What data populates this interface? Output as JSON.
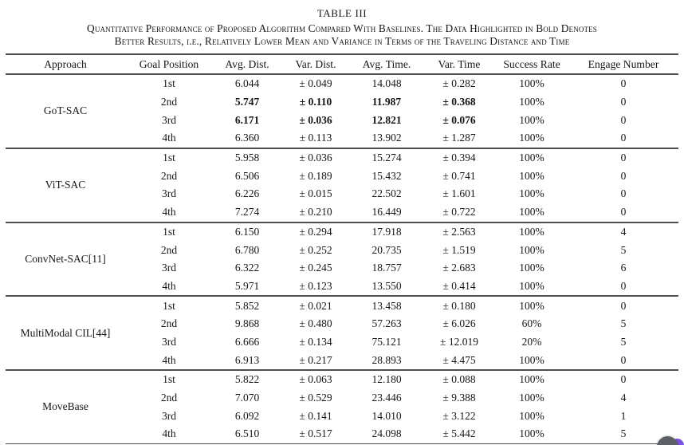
{
  "header": {
    "table_label": "TABLE III",
    "caption_line1": "Quantitative Performance of Proposed Algorithm Compared With Baselines. The Data Highlighted in Bold Denotes",
    "caption_line2": "Better Results, i.e., Relatively Lower Mean and Variance in Terms of the Traveling Distance and Time"
  },
  "table": {
    "columns": [
      "Approach",
      "Goal Position",
      "Avg. Dist.",
      "Var. Dist.",
      "Avg. Time.",
      "Var. Time",
      "Success Rate",
      "Engage Number"
    ],
    "groups": [
      {
        "approach": "GoT-SAC",
        "rows": [
          {
            "goal": "1st",
            "avg_dist": "6.044",
            "var_dist": "± 0.049",
            "avg_time": "14.048",
            "var_time": "± 0.282",
            "success": "100%",
            "engage": "0",
            "bold": false
          },
          {
            "goal": "2nd",
            "avg_dist": "5.747",
            "var_dist": "± 0.110",
            "avg_time": "11.987",
            "var_time": "± 0.368",
            "success": "100%",
            "engage": "0",
            "bold": true
          },
          {
            "goal": "3rd",
            "avg_dist": "6.171",
            "var_dist": "± 0.036",
            "avg_time": "12.821",
            "var_time": "± 0.076",
            "success": "100%",
            "engage": "0",
            "bold": true
          },
          {
            "goal": "4th",
            "avg_dist": "6.360",
            "var_dist": "± 0.113",
            "avg_time": "13.902",
            "var_time": "± 1.287",
            "success": "100%",
            "engage": "0",
            "bold": false
          }
        ]
      },
      {
        "approach": "ViT-SAC",
        "rows": [
          {
            "goal": "1st",
            "avg_dist": "5.958",
            "var_dist": "± 0.036",
            "avg_time": "15.274",
            "var_time": "± 0.394",
            "success": "100%",
            "engage": "0",
            "bold": false
          },
          {
            "goal": "2nd",
            "avg_dist": "6.506",
            "var_dist": "± 0.189",
            "avg_time": "15.432",
            "var_time": "± 0.741",
            "success": "100%",
            "engage": "0",
            "bold": false
          },
          {
            "goal": "3rd",
            "avg_dist": "6.226",
            "var_dist": "± 0.015",
            "avg_time": "22.502",
            "var_time": "± 1.601",
            "success": "100%",
            "engage": "0",
            "bold": false
          },
          {
            "goal": "4th",
            "avg_dist": "7.274",
            "var_dist": "± 0.210",
            "avg_time": "16.449",
            "var_time": "± 0.722",
            "success": "100%",
            "engage": "0",
            "bold": false
          }
        ]
      },
      {
        "approach": "ConvNet-SAC[11]",
        "rows": [
          {
            "goal": "1st",
            "avg_dist": "6.150",
            "var_dist": "± 0.294",
            "avg_time": "17.918",
            "var_time": "± 2.563",
            "success": "100%",
            "engage": "4",
            "bold": false
          },
          {
            "goal": "2nd",
            "avg_dist": "6.780",
            "var_dist": "± 0.252",
            "avg_time": "20.735",
            "var_time": "± 1.519",
            "success": "100%",
            "engage": "5",
            "bold": false
          },
          {
            "goal": "3rd",
            "avg_dist": "6.322",
            "var_dist": "± 0.245",
            "avg_time": "18.757",
            "var_time": "± 2.683",
            "success": "100%",
            "engage": "6",
            "bold": false
          },
          {
            "goal": "4th",
            "avg_dist": "5.971",
            "var_dist": "± 0.123",
            "avg_time": "13.550",
            "var_time": "± 0.414",
            "success": "100%",
            "engage": "0",
            "bold": false
          }
        ]
      },
      {
        "approach": "MultiModal CIL[44]",
        "rows": [
          {
            "goal": "1st",
            "avg_dist": "5.852",
            "var_dist": "± 0.021",
            "avg_time": "13.458",
            "var_time": "± 0.180",
            "success": "100%",
            "engage": "0",
            "bold": false
          },
          {
            "goal": "2nd",
            "avg_dist": "9.868",
            "var_dist": "± 0.480",
            "avg_time": "57.263",
            "var_time": "± 6.026",
            "success": "60%",
            "engage": "5",
            "bold": false
          },
          {
            "goal": "3rd",
            "avg_dist": "6.666",
            "var_dist": "± 0.134",
            "avg_time": "75.121",
            "var_time": "± 12.019",
            "success": "20%",
            "engage": "5",
            "bold": false
          },
          {
            "goal": "4th",
            "avg_dist": "6.913",
            "var_dist": "± 0.217",
            "avg_time": "28.893",
            "var_time": "± 4.475",
            "success": "100%",
            "engage": "0",
            "bold": false
          }
        ]
      },
      {
        "approach": "MoveBase",
        "rows": [
          {
            "goal": "1st",
            "avg_dist": "5.822",
            "var_dist": "± 0.063",
            "avg_time": "12.180",
            "var_time": "± 0.088",
            "success": "100%",
            "engage": "0",
            "bold": false
          },
          {
            "goal": "2nd",
            "avg_dist": "7.070",
            "var_dist": "± 0.529",
            "avg_time": "23.446",
            "var_time": "± 9.388",
            "success": "100%",
            "engage": "4",
            "bold": false
          },
          {
            "goal": "3rd",
            "avg_dist": "6.092",
            "var_dist": "± 0.141",
            "avg_time": "14.010",
            "var_time": "± 3.122",
            "success": "100%",
            "engage": "1",
            "bold": false
          },
          {
            "goal": "4th",
            "avg_dist": "6.510",
            "var_dist": "± 0.517",
            "avg_time": "24.098",
            "var_time": "± 5.442",
            "success": "100%",
            "engage": "5",
            "bold": false
          }
        ]
      }
    ]
  },
  "widget": {
    "body_color": "#5d6066",
    "accent_color": "#7d55e0"
  }
}
